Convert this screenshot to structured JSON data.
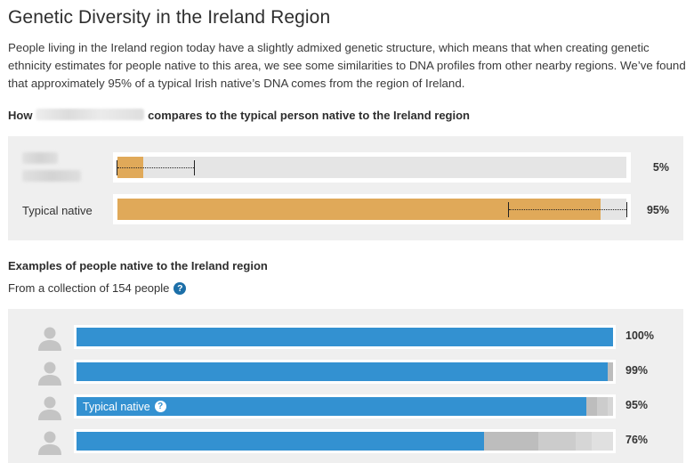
{
  "title": "Genetic Diversity in the Ireland Region",
  "intro": "People living in the Ireland region today have a slightly admixed genetic structure, which means that when creating genetic ethnicity estimates for people native to this area, we see some similarities to DNA profiles from other nearby regions. We’ve found that approximately 95% of a typical Irish native’s DNA comes from the region of Ireland.",
  "comparison": {
    "heading_prefix": "How",
    "heading_suffix": "compares to the typical person native to the Ireland region",
    "rows": [
      {
        "label": "",
        "percent_label": "5%",
        "value": 5,
        "range": [
          0,
          15
        ]
      },
      {
        "label": "Typical native",
        "percent_label": "95%",
        "value": 95,
        "range": [
          77,
          100
        ]
      }
    ]
  },
  "examples": {
    "heading": "Examples of people native to the Ireland region",
    "collection_text": "From a collection of 154 people",
    "help_icon": "?",
    "rows": [
      {
        "label": "",
        "percent_label": "100%",
        "value": 100,
        "grey_segments": []
      },
      {
        "label": "",
        "percent_label": "99%",
        "value": 99,
        "grey_segments": [
          1
        ]
      },
      {
        "label": "Typical native",
        "percent_label": "95%",
        "value": 95,
        "grey_segments": [
          2,
          2,
          1
        ]
      },
      {
        "label": "",
        "percent_label": "76%",
        "value": 76,
        "grey_segments": [
          10,
          7,
          3,
          4
        ]
      }
    ]
  },
  "colors": {
    "orange": "#e0a959",
    "blue": "#3391d1",
    "grey_shades": [
      "#bdbdbd",
      "#cccccc",
      "#d6d6d6",
      "#e0e0e0"
    ]
  }
}
